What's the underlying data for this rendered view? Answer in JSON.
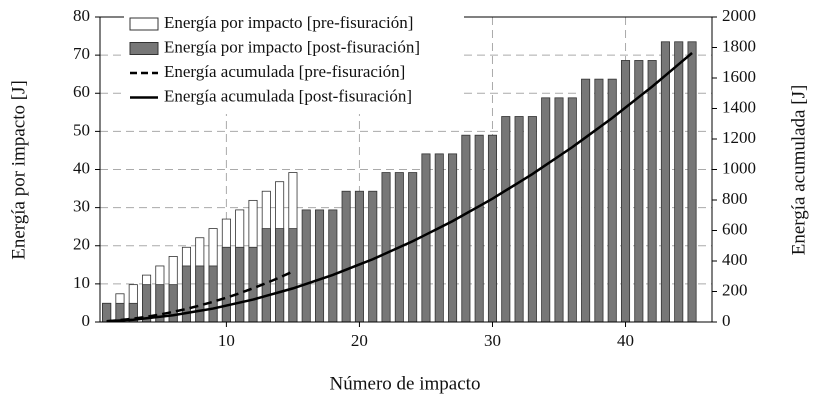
{
  "chart_data": {
    "type": "bar",
    "xlabel": "Número de impacto",
    "ylabel": "Energía por impacto [J]",
    "y2label": "Energía acumulada [J]",
    "x": [
      1,
      2,
      3,
      4,
      5,
      6,
      7,
      8,
      9,
      10,
      11,
      12,
      13,
      14,
      15,
      16,
      17,
      18,
      19,
      20,
      21,
      22,
      23,
      24,
      25,
      26,
      27,
      28,
      29,
      30,
      31,
      32,
      33,
      34,
      35,
      36,
      37,
      38,
      39,
      40,
      41,
      42,
      43,
      44,
      45
    ],
    "xlim": [
      0.5,
      46.5
    ],
    "xticks": [
      10,
      20,
      30,
      40
    ],
    "ylim": [
      0,
      80
    ],
    "yticks": [
      0,
      10,
      20,
      30,
      40,
      50,
      60,
      70,
      80
    ],
    "y2lim": [
      0,
      2000
    ],
    "y2ticks": [
      0,
      200,
      400,
      600,
      800,
      1000,
      1200,
      1400,
      1600,
      1800,
      2000
    ],
    "grid": true,
    "legend": "upper left",
    "series": [
      {
        "name": "Energía por impacto [pre-fisuración]",
        "type": "bar",
        "color": "#ffffff",
        "values": [
          4.9,
          7.4,
          9.8,
          12.3,
          14.7,
          17.2,
          19.6,
          22.1,
          24.5,
          27,
          29.4,
          31.9,
          34.3,
          36.8,
          39.2,
          null,
          null,
          null,
          null,
          null,
          null,
          null,
          null,
          null,
          null,
          null,
          null,
          null,
          null,
          null,
          null,
          null,
          null,
          null,
          null,
          null,
          null,
          null,
          null,
          null,
          null,
          null,
          null,
          null,
          null
        ]
      },
      {
        "name": "Energía por impacto [post-fisuración]",
        "type": "bar",
        "color": "#777777",
        "values": [
          4.9,
          4.9,
          4.9,
          9.8,
          9.8,
          9.8,
          14.7,
          14.7,
          14.7,
          19.6,
          19.6,
          19.6,
          24.5,
          24.5,
          24.5,
          29.4,
          29.4,
          29.4,
          34.3,
          34.3,
          34.3,
          39.2,
          39.2,
          39.2,
          44.1,
          44.1,
          44.1,
          49,
          49,
          49,
          53.9,
          53.9,
          53.9,
          58.8,
          58.8,
          58.8,
          63.7,
          63.7,
          63.7,
          68.6,
          68.6,
          68.6,
          73.5,
          73.5,
          73.5
        ]
      },
      {
        "name": "Energía acumulada [pre-fisuración]",
        "type": "line",
        "axis": "y2",
        "color": "#000000",
        "dashed": true,
        "values": [
          4.9,
          12.3,
          22.1,
          34.4,
          49.1,
          66.3,
          85.9,
          108,
          132.5,
          159.5,
          188.9,
          220.8,
          255.1,
          291.9,
          331.1,
          null,
          null,
          null,
          null,
          null,
          null,
          null,
          null,
          null,
          null,
          null,
          null,
          null,
          null,
          null,
          null,
          null,
          null,
          null,
          null,
          null,
          null,
          null,
          null,
          null,
          null,
          null,
          null,
          null,
          null
        ]
      },
      {
        "name": "Energía acumulada [post-fisuración]",
        "type": "line",
        "axis": "y2",
        "color": "#000000",
        "dashed": false,
        "values": [
          4.9,
          9.8,
          14.7,
          24.5,
          34.3,
          44.1,
          58.8,
          73.5,
          88.2,
          107.8,
          127.4,
          147,
          171.5,
          196,
          220.5,
          249.9,
          279.3,
          308.7,
          343,
          377.3,
          411.6,
          450.8,
          490,
          529.2,
          573.3,
          617.4,
          661.5,
          710.5,
          759.5,
          808.5,
          862.4,
          916.3,
          970.2,
          1029,
          1087.8,
          1146.6,
          1210.3,
          1274,
          1337.7,
          1406.3,
          1474.9,
          1543.5,
          1617,
          1690.5,
          1764
        ]
      }
    ]
  }
}
